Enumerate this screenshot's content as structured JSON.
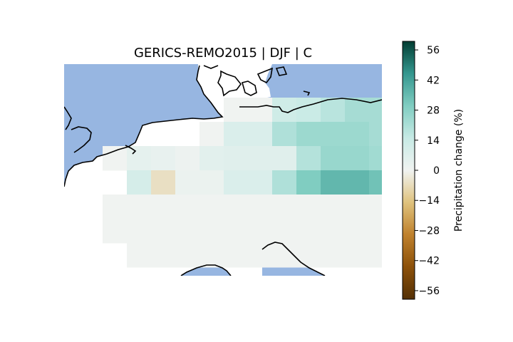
{
  "title": "GERICS-REMO2015 | DJF | C",
  "colorbar": {
    "label": "Precipitation change (%)",
    "ticks": [
      "56",
      "42",
      "28",
      "14",
      "0",
      "−14",
      "−28",
      "−42",
      "−56"
    ],
    "colormap": "BrBG",
    "range": [
      -60,
      60
    ]
  },
  "colors": {
    "ocean": "#97b6e1",
    "land_outside_grid": "#ffffff",
    "coastline": "#000000"
  },
  "grid_cells": [
    {
      "row": 0,
      "col": 6,
      "value": 0
    },
    {
      "row": 0,
      "col": 7,
      "value": 0
    },
    {
      "row": 0,
      "col": 8,
      "value": 12
    },
    {
      "row": 0,
      "col": 9,
      "value": 14
    },
    {
      "row": 0,
      "col": 10,
      "value": 18
    },
    {
      "row": 0,
      "col": 11,
      "value": 22
    },
    {
      "row": 0,
      "col": 12,
      "value": 22
    },
    {
      "row": 1,
      "col": 5,
      "value": 0
    },
    {
      "row": 1,
      "col": 6,
      "value": 8
    },
    {
      "row": 1,
      "col": 7,
      "value": 8
    },
    {
      "row": 1,
      "col": 8,
      "value": 20
    },
    {
      "row": 1,
      "col": 9,
      "value": 24
    },
    {
      "row": 1,
      "col": 10,
      "value": 24
    },
    {
      "row": 1,
      "col": 11,
      "value": 24
    },
    {
      "row": 1,
      "col": 12,
      "value": 22
    },
    {
      "row": 2,
      "col": 1,
      "value": 0
    },
    {
      "row": 2,
      "col": 2,
      "value": 4
    },
    {
      "row": 2,
      "col": 3,
      "value": 3
    },
    {
      "row": 2,
      "col": 4,
      "value": 1
    },
    {
      "row": 2,
      "col": 5,
      "value": 5
    },
    {
      "row": 2,
      "col": 6,
      "value": 6
    },
    {
      "row": 2,
      "col": 7,
      "value": 6
    },
    {
      "row": 2,
      "col": 8,
      "value": 6
    },
    {
      "row": 2,
      "col": 9,
      "value": 19
    },
    {
      "row": 2,
      "col": 10,
      "value": 25
    },
    {
      "row": 2,
      "col": 11,
      "value": 25
    },
    {
      "row": 2,
      "col": 12,
      "value": 23
    },
    {
      "row": 3,
      "col": 2,
      "value": 10
    },
    {
      "row": 3,
      "col": 3,
      "value": -6
    },
    {
      "row": 3,
      "col": 4,
      "value": 2
    },
    {
      "row": 3,
      "col": 5,
      "value": 2
    },
    {
      "row": 3,
      "col": 6,
      "value": 8
    },
    {
      "row": 3,
      "col": 7,
      "value": 8
    },
    {
      "row": 3,
      "col": 8,
      "value": 20
    },
    {
      "row": 3,
      "col": 9,
      "value": 30
    },
    {
      "row": 3,
      "col": 10,
      "value": 36
    },
    {
      "row": 3,
      "col": 11,
      "value": 36
    },
    {
      "row": 3,
      "col": 12,
      "value": 33
    }
  ]
}
